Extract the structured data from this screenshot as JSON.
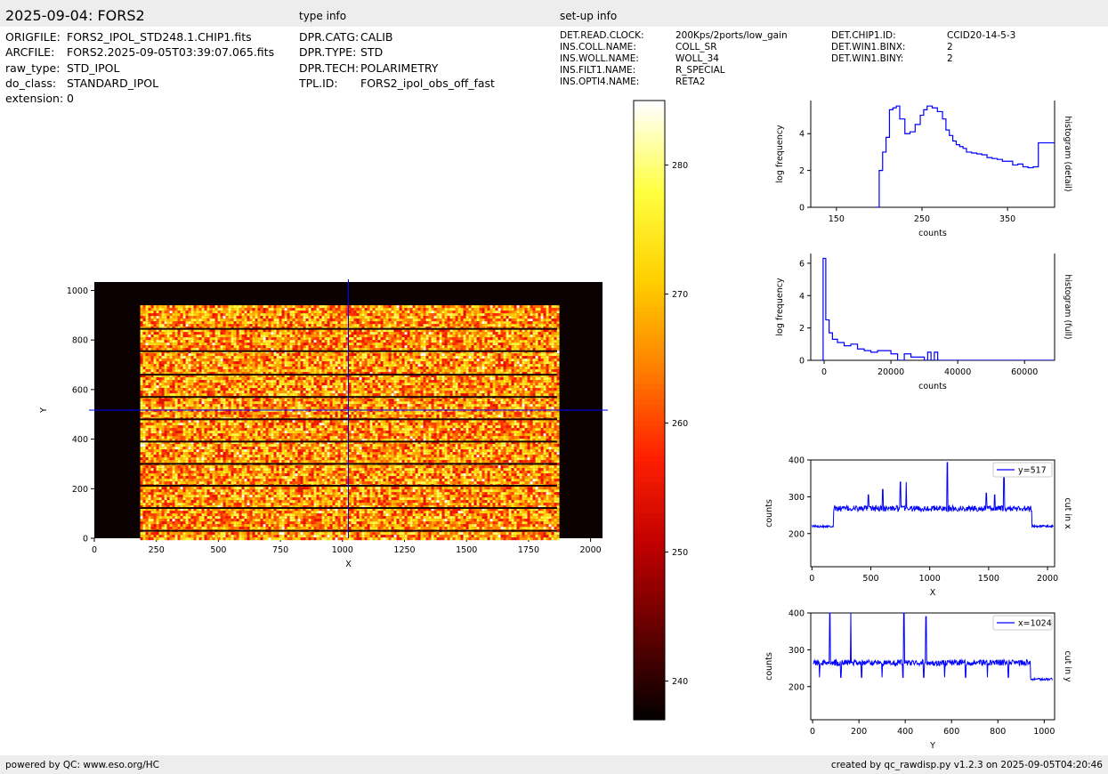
{
  "header": {
    "title": "2025-09-04: FORS2",
    "type_info_label": "type info",
    "setup_info_label": "set-up info"
  },
  "file_info": [
    {
      "key": "ORIGFILE:",
      "value": "FORS2_IPOL_STD248.1.CHIP1.fits"
    },
    {
      "key": "ARCFILE:",
      "value": "FORS2.2025-09-05T03:39:07.065.fits"
    },
    {
      "key": "raw_type:",
      "value": "STD_IPOL"
    },
    {
      "key": "do_class:",
      "value": "STANDARD_IPOL"
    },
    {
      "key": "extension:",
      "value": "0"
    }
  ],
  "type_info": [
    {
      "key": "DPR.CATG:",
      "value": "CALIB"
    },
    {
      "key": "DPR.TYPE:",
      "value": "STD"
    },
    {
      "key": "DPR.TECH:",
      "value": "POLARIMETRY"
    },
    {
      "key": "TPL.ID:",
      "value": "FORS2_ipol_obs_off_fast"
    }
  ],
  "setup_info_1": [
    {
      "key": "DET.READ.CLOCK:",
      "value": "200Kps/2ports/low_gain"
    },
    {
      "key": "INS.COLL.NAME:",
      "value": "COLL_SR"
    },
    {
      "key": "INS.WOLL.NAME:",
      "value": "WOLL_34"
    },
    {
      "key": "INS.FILT1.NAME:",
      "value": "R_SPECIAL"
    },
    {
      "key": "INS.OPTI4.NAME:",
      "value": "RETA2"
    }
  ],
  "setup_info_2": [
    {
      "key": "DET.CHIP1.ID:",
      "value": "CCID20-14-5-3"
    },
    {
      "key": "DET.WIN1.BINX:",
      "value": "2"
    },
    {
      "key": "DET.WIN1.BINY:",
      "value": "2"
    }
  ],
  "footer": {
    "left": "powered by QC: www.eso.org/HC",
    "right": "created by qc_rawdisp.py v1.2.3 on 2025-09-05T04:20:46"
  },
  "colors": {
    "series": "#0000ff",
    "panel_bg": "#ededed",
    "image_bg": "#0a0000",
    "cmap": [
      "#000000",
      "#600000",
      "#c00000",
      "#ff2000",
      "#ff8000",
      "#ffd000",
      "#ffff40",
      "#ffffff"
    ]
  },
  "chart_data": [
    {
      "type": "heatmap",
      "id": "image",
      "xlabel": "X",
      "ylabel": "Y",
      "xlim": [
        0,
        2048
      ],
      "ylim": [
        0,
        1034
      ],
      "x_ticks": [
        0,
        250,
        500,
        750,
        1000,
        1250,
        1500,
        1750,
        2000
      ],
      "y_ticks": [
        0,
        200,
        400,
        600,
        800,
        1000
      ],
      "illuminated_x": [
        185,
        1865
      ],
      "illuminated_y": [
        0,
        940
      ],
      "strip_dividers_y": [
        30,
        122,
        212,
        300,
        390,
        480,
        570,
        660,
        755,
        845
      ],
      "cursor_x": 1024,
      "cursor_y": 517
    },
    {
      "type": "heatmap",
      "id": "colorbar",
      "range": [
        237,
        285
      ],
      "ticks": [
        240,
        250,
        260,
        270,
        280
      ]
    },
    {
      "type": "line",
      "id": "hist_detail",
      "xlabel": "counts",
      "ylabel": "log frequency",
      "side_label": "histogram (detail)",
      "xlim": [
        120,
        405
      ],
      "ylim": [
        0,
        5.8
      ],
      "x_ticks": [
        150,
        250,
        350
      ],
      "y_ticks": [
        0,
        2,
        4
      ],
      "x": [
        196,
        200,
        204,
        208,
        212,
        216,
        220,
        224,
        230,
        236,
        242,
        248,
        252,
        256,
        262,
        268,
        274,
        278,
        282,
        286,
        290,
        294,
        298,
        302,
        308,
        314,
        320,
        326,
        332,
        338,
        344,
        350,
        356,
        362,
        368,
        374,
        380,
        386,
        392,
        400,
        405
      ],
      "y": [
        0,
        2.0,
        3.0,
        3.8,
        5.3,
        5.4,
        5.5,
        4.8,
        4.0,
        4.1,
        4.5,
        5.0,
        5.3,
        5.5,
        5.4,
        5.2,
        4.8,
        4.2,
        3.9,
        3.6,
        3.4,
        3.3,
        3.2,
        3.0,
        2.95,
        2.9,
        2.85,
        2.7,
        2.65,
        2.6,
        2.5,
        2.5,
        2.3,
        2.35,
        2.2,
        2.15,
        2.2,
        3.5,
        3.5,
        3.5,
        3.5
      ]
    },
    {
      "type": "line",
      "id": "hist_full",
      "xlabel": "counts",
      "ylabel": "log frequency",
      "side_label": "histogram (full)",
      "xlim": [
        -4000,
        69000
      ],
      "ylim": [
        0,
        6.6
      ],
      "x_ticks": [
        0,
        20000,
        40000,
        60000
      ],
      "y_ticks": [
        0,
        2,
        4,
        6
      ],
      "x": [
        -1200,
        -300,
        500,
        1500,
        2500,
        4000,
        6000,
        8000,
        10000,
        12000,
        14000,
        16000,
        18000,
        20000,
        22000,
        24000,
        26000,
        28000,
        30000,
        31000,
        32000,
        33000,
        34000,
        35000,
        36000,
        40000,
        50000,
        60000,
        68000
      ],
      "y": [
        0,
        6.3,
        2.5,
        1.7,
        1.3,
        1.1,
        0.9,
        1.0,
        0.7,
        0.6,
        0.5,
        0.6,
        0.6,
        0.4,
        0.0,
        0.4,
        0.2,
        0.2,
        0.0,
        0.5,
        0.0,
        0.5,
        0.0,
        0.0,
        0.0,
        0.0,
        0.0,
        0.0,
        0.0
      ]
    },
    {
      "type": "line",
      "id": "cut_x",
      "xlabel": "X",
      "ylabel": "counts",
      "side_label": "cut in x",
      "legend": "y=517",
      "xlim": [
        -10,
        2060
      ],
      "ylim": [
        110,
        400
      ],
      "x_ticks": [
        0,
        500,
        1000,
        1500,
        2000
      ],
      "y_ticks": [
        200,
        300,
        400
      ],
      "baseline_low": 220,
      "baseline_high": 268,
      "plateau_x": [
        185,
        1865
      ],
      "spikes": [
        {
          "x": 480,
          "y": 305
        },
        {
          "x": 600,
          "y": 320
        },
        {
          "x": 750,
          "y": 340
        },
        {
          "x": 800,
          "y": 340
        },
        {
          "x": 1150,
          "y": 393
        },
        {
          "x": 1480,
          "y": 310
        },
        {
          "x": 1550,
          "y": 305
        },
        {
          "x": 1630,
          "y": 368
        }
      ]
    },
    {
      "type": "line",
      "id": "cut_y",
      "xlabel": "Y",
      "ylabel": "counts",
      "side_label": "cut in y",
      "legend": "x=1024",
      "xlim": [
        -8,
        1045
      ],
      "ylim": [
        110,
        400
      ],
      "x_ticks": [
        0,
        200,
        400,
        600,
        800,
        1000
      ],
      "y_ticks": [
        200,
        300,
        400
      ],
      "baseline_low": 220,
      "baseline_high": 265,
      "plateau_y": [
        0,
        940
      ],
      "spikes": [
        {
          "x": 75,
          "y": 400
        },
        {
          "x": 165,
          "y": 400
        },
        {
          "x": 395,
          "y": 400
        },
        {
          "x": 490,
          "y": 390
        }
      ],
      "dips": [
        30,
        122,
        212,
        300,
        390,
        480,
        570,
        660,
        755,
        845
      ]
    }
  ]
}
